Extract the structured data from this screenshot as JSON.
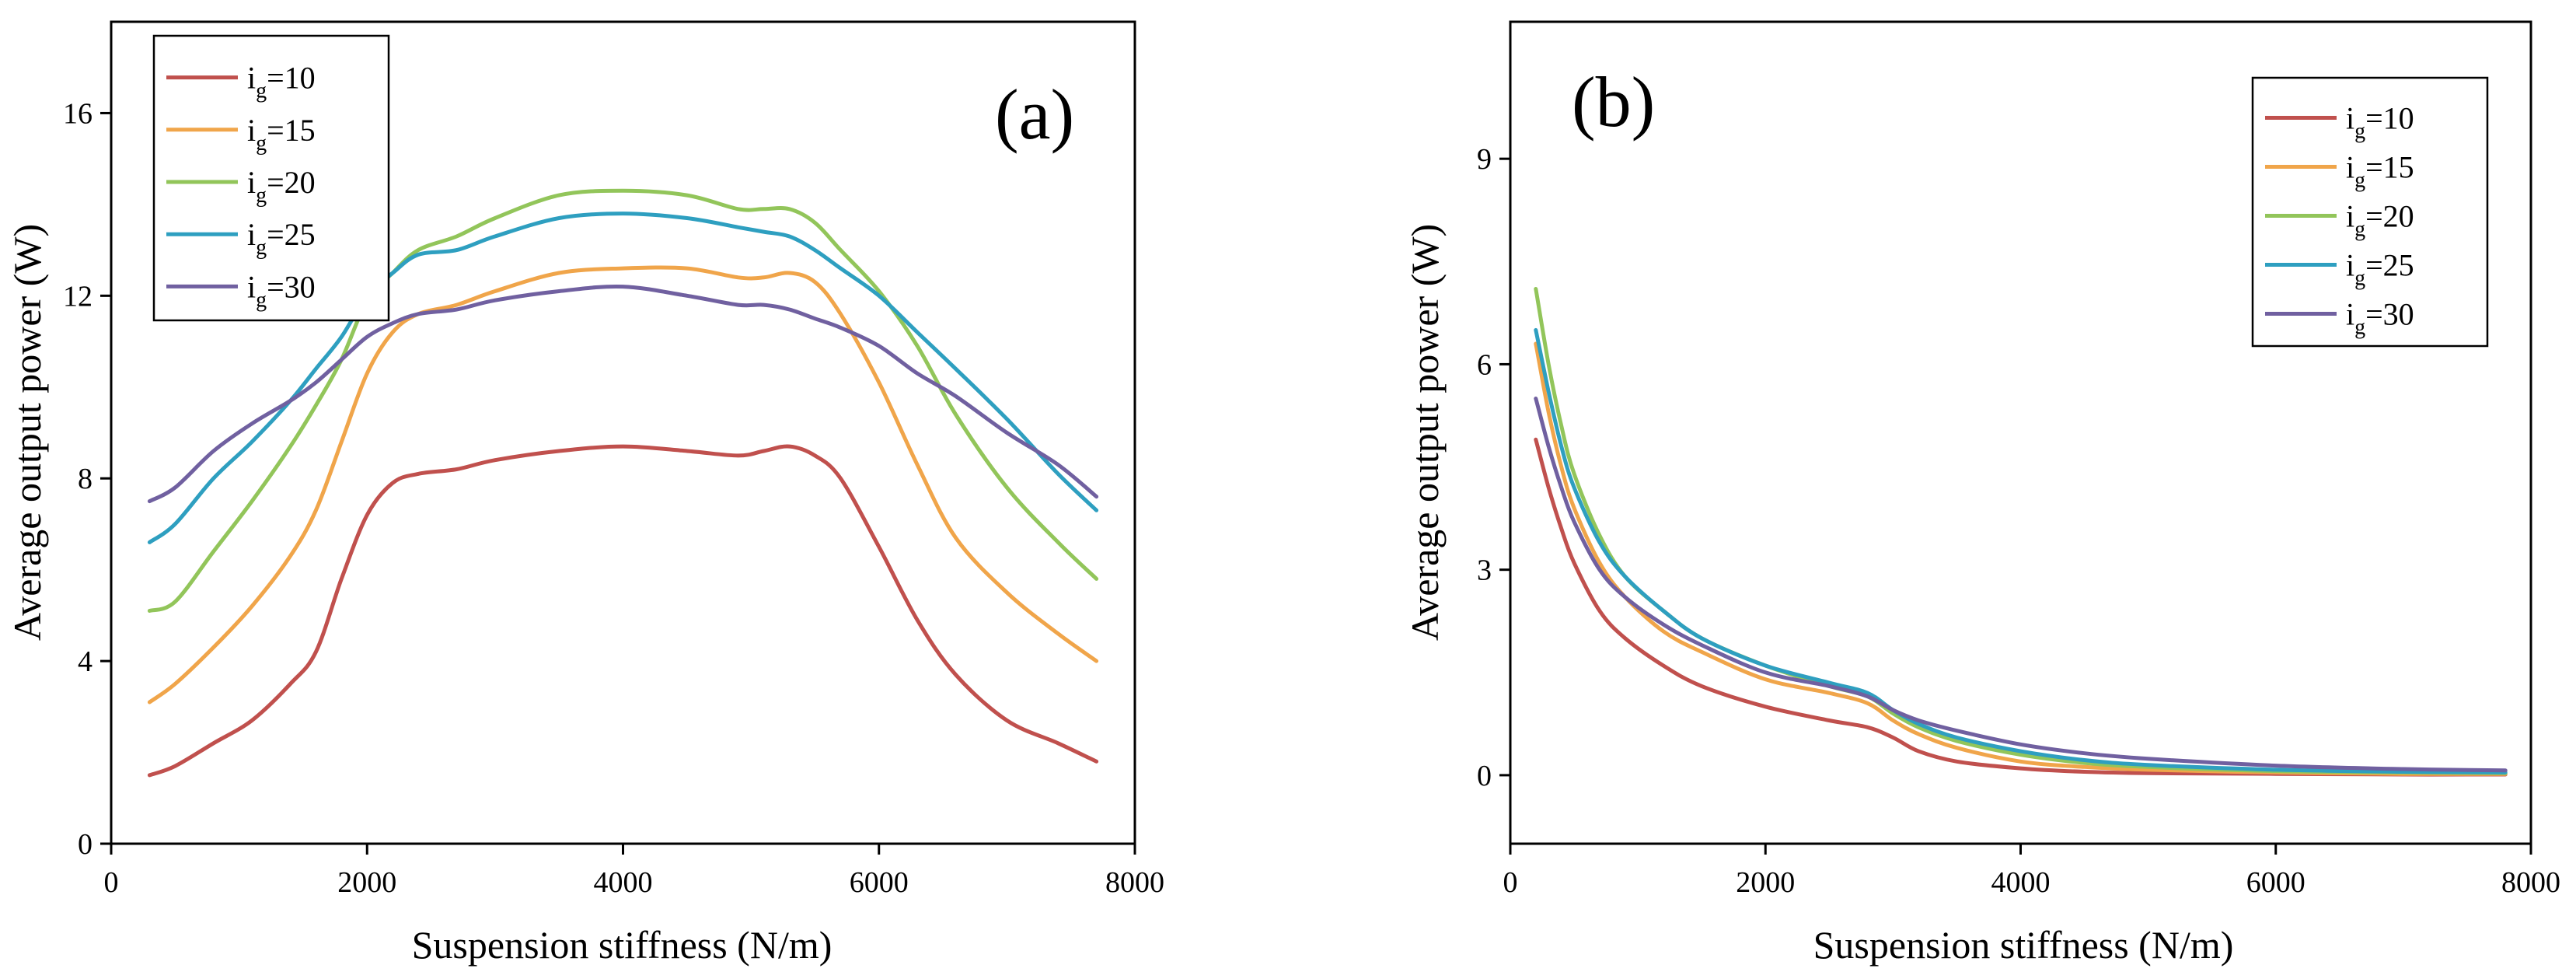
{
  "colors": {
    "ig10": "#c0504d",
    "ig15": "#f0a54a",
    "ig20": "#92c55a",
    "ig25": "#2e9fc0",
    "ig30": "#7060a0"
  },
  "chart_data": [
    {
      "type": "line",
      "panel_label": "(a)",
      "xlabel": "Suspension stiffness (N/m)",
      "ylabel": "Average output power (W)",
      "xlim": [
        0,
        8000
      ],
      "ylim": [
        0,
        18
      ],
      "xticks": [
        0,
        2000,
        4000,
        6000,
        8000
      ],
      "yticks": [
        0,
        4,
        8,
        12,
        16
      ],
      "legend_position": "top-left",
      "series": [
        {
          "name": "i",
          "sub": "g",
          "suffix": "=10",
          "color_key": "ig10",
          "x": [
            300,
            500,
            800,
            1100,
            1400,
            1600,
            1800,
            2000,
            2200,
            2400,
            2700,
            3000,
            3500,
            4000,
            4500,
            4900,
            5100,
            5300,
            5500,
            5700,
            6000,
            6300,
            6600,
            7000,
            7400,
            7700
          ],
          "y": [
            1.5,
            1.7,
            2.2,
            2.7,
            3.5,
            4.2,
            5.8,
            7.2,
            7.9,
            8.1,
            8.2,
            8.4,
            8.6,
            8.7,
            8.6,
            8.5,
            8.6,
            8.7,
            8.5,
            8.0,
            6.5,
            4.9,
            3.7,
            2.7,
            2.2,
            1.8
          ]
        },
        {
          "name": "i",
          "sub": "g",
          "suffix": "=15",
          "color_key": "ig15",
          "x": [
            300,
            500,
            800,
            1100,
            1400,
            1600,
            1800,
            2000,
            2200,
            2400,
            2700,
            3000,
            3500,
            4000,
            4500,
            4900,
            5100,
            5300,
            5500,
            5700,
            6000,
            6300,
            6600,
            7000,
            7400,
            7700
          ],
          "y": [
            3.1,
            3.5,
            4.3,
            5.2,
            6.3,
            7.3,
            8.8,
            10.3,
            11.2,
            11.6,
            11.8,
            12.1,
            12.5,
            12.6,
            12.6,
            12.4,
            12.4,
            12.5,
            12.3,
            11.6,
            10.1,
            8.3,
            6.7,
            5.5,
            4.6,
            4.0
          ]
        },
        {
          "name": "i",
          "sub": "g",
          "suffix": "=20",
          "color_key": "ig20",
          "x": [
            300,
            500,
            800,
            1100,
            1400,
            1600,
            1800,
            2000,
            2200,
            2400,
            2700,
            3000,
            3500,
            4000,
            4500,
            4900,
            5100,
            5300,
            5500,
            5700,
            6000,
            6300,
            6600,
            7000,
            7400,
            7700
          ],
          "y": [
            5.1,
            5.3,
            6.4,
            7.5,
            8.7,
            9.6,
            10.6,
            11.9,
            12.5,
            13.0,
            13.3,
            13.7,
            14.2,
            14.3,
            14.2,
            13.9,
            13.9,
            13.9,
            13.6,
            13.0,
            12.1,
            10.9,
            9.4,
            7.8,
            6.6,
            5.8
          ]
        },
        {
          "name": "i",
          "sub": "g",
          "suffix": "=25",
          "color_key": "ig25",
          "x": [
            300,
            500,
            800,
            1100,
            1400,
            1600,
            1800,
            2000,
            2200,
            2400,
            2700,
            3000,
            3500,
            4000,
            4500,
            4900,
            5100,
            5300,
            5500,
            5700,
            6000,
            6300,
            6600,
            7000,
            7400,
            7700
          ],
          "y": [
            6.6,
            7.0,
            8.0,
            8.8,
            9.7,
            10.4,
            11.1,
            12.0,
            12.5,
            12.9,
            13.0,
            13.3,
            13.7,
            13.8,
            13.7,
            13.5,
            13.4,
            13.3,
            13.0,
            12.6,
            12.0,
            11.2,
            10.4,
            9.3,
            8.1,
            7.3
          ]
        },
        {
          "name": "i",
          "sub": "g",
          "suffix": "=30",
          "color_key": "ig30",
          "x": [
            300,
            500,
            800,
            1100,
            1400,
            1600,
            1800,
            2000,
            2200,
            2400,
            2700,
            3000,
            3500,
            4000,
            4500,
            4900,
            5100,
            5300,
            5500,
            5700,
            6000,
            6300,
            6600,
            7000,
            7400,
            7700
          ],
          "y": [
            7.5,
            7.8,
            8.6,
            9.2,
            9.7,
            10.1,
            10.6,
            11.1,
            11.4,
            11.6,
            11.7,
            11.9,
            12.1,
            12.2,
            12.0,
            11.8,
            11.8,
            11.7,
            11.5,
            11.3,
            10.9,
            10.3,
            9.8,
            9.0,
            8.3,
            7.6
          ]
        }
      ]
    },
    {
      "type": "line",
      "panel_label": "(b)",
      "xlabel": "Suspension stiffness (N/m)",
      "ylabel": "Average output power (W)",
      "xlim": [
        0,
        8000
      ],
      "ylim": [
        -1,
        11
      ],
      "xticks": [
        0,
        2000,
        4000,
        6000,
        8000
      ],
      "yticks": [
        0,
        3,
        6,
        9
      ],
      "legend_position": "top-right",
      "series": [
        {
          "name": "i",
          "sub": "g",
          "suffix": "=10",
          "color_key": "ig10",
          "x": [
            200,
            300,
            400,
            500,
            700,
            900,
            1200,
            1500,
            2000,
            2500,
            2800,
            3000,
            3200,
            3500,
            4000,
            4500,
            5000,
            6000,
            7000,
            7800
          ],
          "y": [
            4.9,
            4.2,
            3.6,
            3.1,
            2.4,
            2.0,
            1.6,
            1.3,
            1.0,
            0.8,
            0.7,
            0.55,
            0.35,
            0.2,
            0.1,
            0.05,
            0.03,
            0.02,
            0.01,
            0.01
          ]
        },
        {
          "name": "i",
          "sub": "g",
          "suffix": "=15",
          "color_key": "ig15",
          "x": [
            200,
            300,
            400,
            500,
            700,
            900,
            1200,
            1500,
            2000,
            2500,
            2800,
            3000,
            3200,
            3500,
            4000,
            4500,
            5000,
            6000,
            7000,
            7800
          ],
          "y": [
            6.3,
            5.3,
            4.5,
            3.9,
            3.1,
            2.6,
            2.1,
            1.8,
            1.4,
            1.2,
            1.05,
            0.8,
            0.6,
            0.4,
            0.2,
            0.12,
            0.08,
            0.04,
            0.02,
            0.02
          ]
        },
        {
          "name": "i",
          "sub": "g",
          "suffix": "=20",
          "color_key": "ig20",
          "x": [
            200,
            300,
            400,
            500,
            700,
            900,
            1200,
            1500,
            2000,
            2500,
            2800,
            3000,
            3200,
            3500,
            4000,
            4500,
            5000,
            6000,
            7000,
            7800
          ],
          "y": [
            7.1,
            6.0,
            5.1,
            4.4,
            3.5,
            2.9,
            2.4,
            2.0,
            1.6,
            1.3,
            1.15,
            0.9,
            0.7,
            0.5,
            0.3,
            0.18,
            0.12,
            0.06,
            0.04,
            0.03
          ]
        },
        {
          "name": "i",
          "sub": "g",
          "suffix": "=25",
          "color_key": "ig25",
          "x": [
            200,
            300,
            400,
            500,
            700,
            900,
            1200,
            1500,
            2000,
            2500,
            2800,
            3000,
            3200,
            3500,
            4000,
            4500,
            5000,
            6000,
            7000,
            7800
          ],
          "y": [
            6.5,
            5.6,
            4.8,
            4.2,
            3.4,
            2.9,
            2.4,
            2.0,
            1.6,
            1.35,
            1.2,
            0.95,
            0.75,
            0.55,
            0.35,
            0.22,
            0.15,
            0.08,
            0.05,
            0.04
          ]
        },
        {
          "name": "i",
          "sub": "g",
          "suffix": "=30",
          "color_key": "ig30",
          "x": [
            200,
            300,
            400,
            500,
            700,
            900,
            1200,
            1500,
            2000,
            2500,
            2800,
            3000,
            3200,
            3500,
            4000,
            4500,
            5000,
            6000,
            7000,
            7800
          ],
          "y": [
            5.5,
            4.8,
            4.2,
            3.7,
            3.0,
            2.6,
            2.2,
            1.9,
            1.5,
            1.3,
            1.15,
            0.95,
            0.8,
            0.65,
            0.45,
            0.32,
            0.24,
            0.14,
            0.09,
            0.07
          ]
        }
      ]
    }
  ]
}
